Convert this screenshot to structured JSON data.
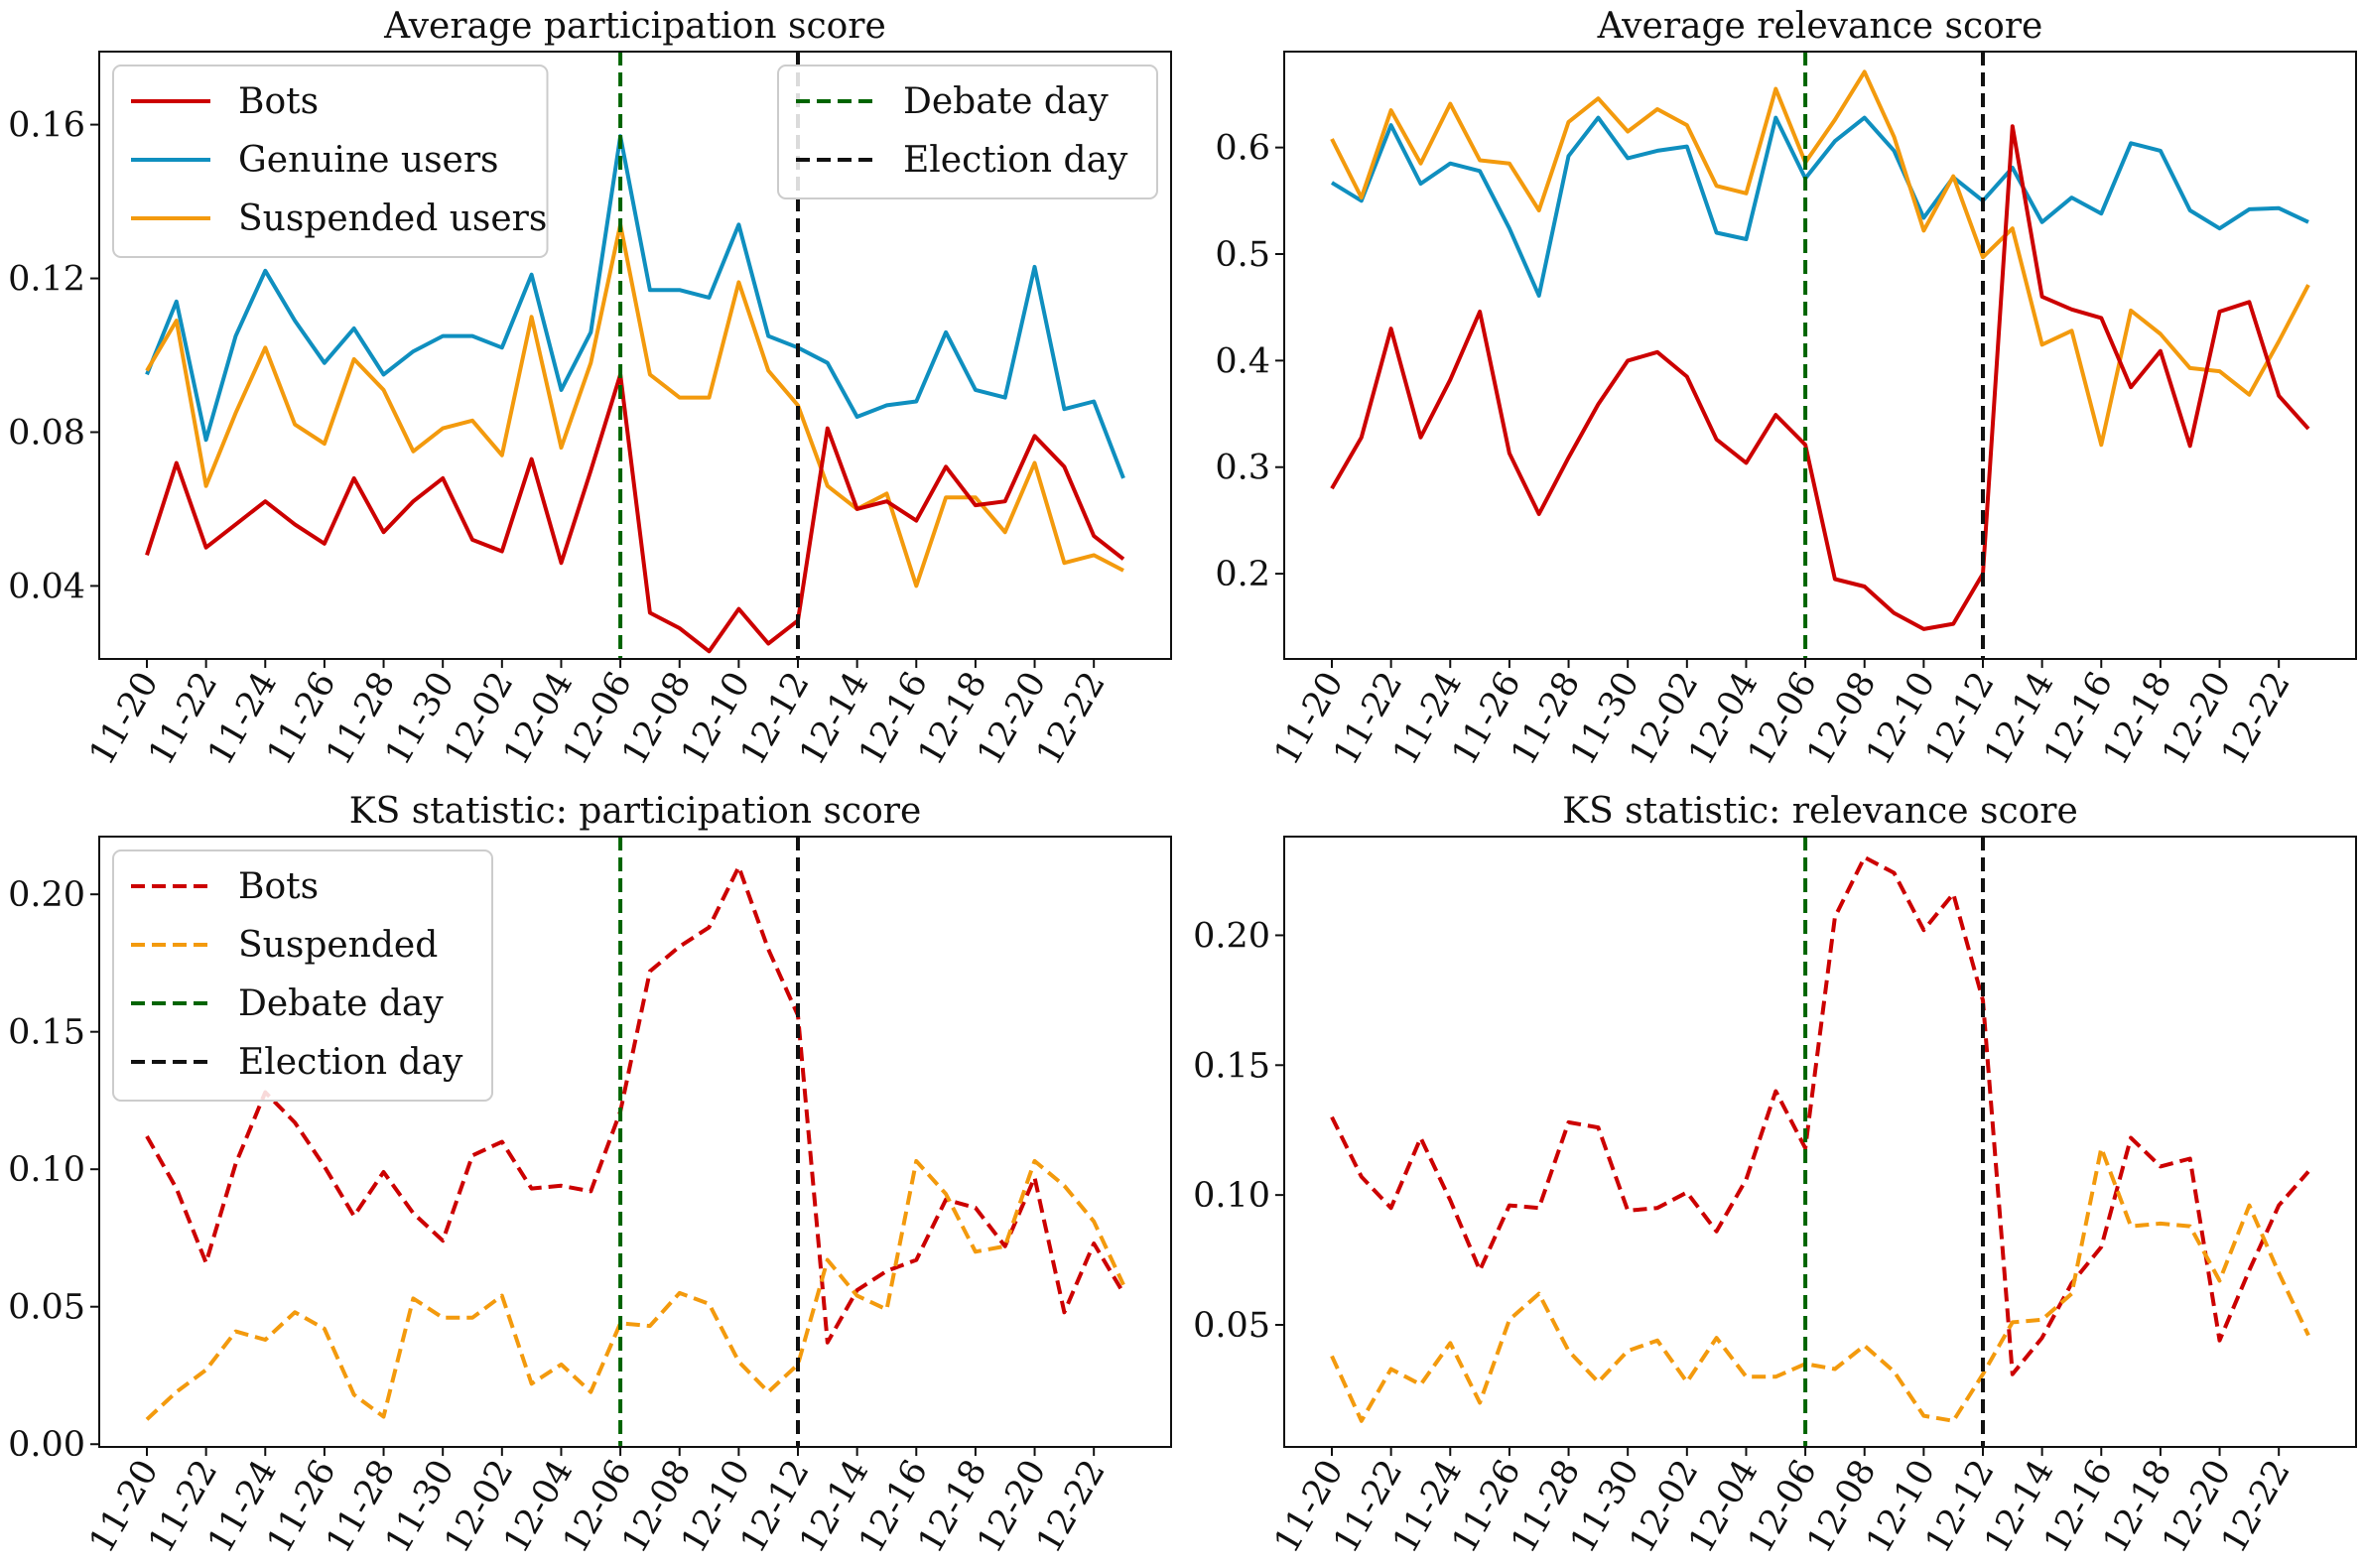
{
  "dates": [
    "11-20",
    "11-21",
    "11-22",
    "11-23",
    "11-24",
    "11-25",
    "11-26",
    "11-27",
    "11-28",
    "11-29",
    "11-30",
    "12-01",
    "12-02",
    "12-03",
    "12-04",
    "12-05",
    "12-06",
    "12-07",
    "12-08",
    "12-09",
    "12-10",
    "12-11",
    "12-12",
    "12-13",
    "12-14",
    "12-15",
    "12-16",
    "12-17",
    "12-18",
    "12-19",
    "12-20",
    "12-21",
    "12-22",
    "12-23"
  ],
  "colors": {
    "bots": "#cc0000",
    "genuine": "#0f8fbf",
    "suspended": "#f39a0d",
    "debate": "#006400",
    "election": "#111111"
  },
  "chart_data": [
    {
      "type": "line",
      "title": "Average participation score",
      "xlabel": "",
      "ylabel": "",
      "ylim": [
        0.021,
        0.179
      ],
      "yticks": [
        0.04,
        0.08,
        0.12,
        0.16
      ],
      "ytick_labels": [
        "0.04",
        "0.08",
        "0.12",
        "0.16"
      ],
      "xtick_labels": [
        "11-20",
        "11-22",
        "11-24",
        "11-26",
        "11-28",
        "11-30",
        "12-02",
        "12-04",
        "12-06",
        "12-08",
        "12-10",
        "12-12",
        "12-14",
        "12-16",
        "12-18",
        "12-20",
        "12-22"
      ],
      "vlines": [
        {
          "x": "12-06",
          "name": "Debate day",
          "color": "#006400"
        },
        {
          "x": "12-12",
          "name": "Election day",
          "color": "#111111"
        }
      ],
      "legends": [
        {
          "loc": "upper left",
          "entries": [
            {
              "name": "Bots",
              "color": "#cc0000",
              "dash": "solid"
            },
            {
              "name": "Genuine users",
              "color": "#0f8fbf",
              "dash": "solid"
            },
            {
              "name": "Suspended users",
              "color": "#f39a0d",
              "dash": "solid"
            }
          ]
        },
        {
          "loc": "upper right",
          "entries": [
            {
              "name": "Debate day",
              "color": "#006400",
              "dash": "dashed"
            },
            {
              "name": "Election day",
              "color": "#111111",
              "dash": "dashed"
            }
          ]
        }
      ],
      "series": [
        {
          "name": "Genuine users",
          "color": "#0f8fbf",
          "dash": "solid",
          "values": [
            0.095,
            0.114,
            0.078,
            0.105,
            0.122,
            0.109,
            0.098,
            0.107,
            0.095,
            0.101,
            0.105,
            0.105,
            0.102,
            0.121,
            0.091,
            0.106,
            0.157,
            0.117,
            0.117,
            0.115,
            0.134,
            0.105,
            0.102,
            0.098,
            0.084,
            0.087,
            0.088,
            0.106,
            0.091,
            0.089,
            0.123,
            0.086,
            0.088,
            0.068
          ]
        },
        {
          "name": "Suspended users",
          "color": "#f39a0d",
          "dash": "solid",
          "values": [
            0.096,
            0.109,
            0.066,
            0.085,
            0.102,
            0.082,
            0.077,
            0.099,
            0.091,
            0.075,
            0.081,
            0.083,
            0.074,
            0.11,
            0.076,
            0.098,
            0.134,
            0.095,
            0.089,
            0.089,
            0.119,
            0.096,
            0.087,
            0.066,
            0.06,
            0.064,
            0.04,
            0.063,
            0.063,
            0.054,
            0.072,
            0.046,
            0.048,
            0.044
          ]
        },
        {
          "name": "Bots",
          "color": "#cc0000",
          "dash": "solid",
          "values": [
            0.048,
            0.072,
            0.05,
            0.056,
            0.062,
            0.056,
            0.051,
            0.068,
            0.054,
            0.062,
            0.068,
            0.052,
            0.049,
            0.073,
            0.046,
            0.07,
            0.095,
            0.033,
            0.029,
            0.023,
            0.034,
            0.025,
            0.031,
            0.081,
            0.06,
            0.062,
            0.057,
            0.071,
            0.061,
            0.062,
            0.079,
            0.071,
            0.053,
            0.047
          ]
        }
      ]
    },
    {
      "type": "line",
      "title": "Average relevance score",
      "xlabel": "",
      "ylabel": "",
      "ylim": [
        0.12,
        0.69
      ],
      "yticks": [
        0.2,
        0.3,
        0.4,
        0.5,
        0.6
      ],
      "ytick_labels": [
        "0.2",
        "0.3",
        "0.4",
        "0.5",
        "0.6"
      ],
      "xtick_labels": [
        "11-20",
        "11-22",
        "11-24",
        "11-26",
        "11-28",
        "11-30",
        "12-02",
        "12-04",
        "12-06",
        "12-08",
        "12-10",
        "12-12",
        "12-14",
        "12-16",
        "12-18",
        "12-20",
        "12-22"
      ],
      "vlines": [
        {
          "x": "12-06",
          "name": "Debate day",
          "color": "#006400"
        },
        {
          "x": "12-12",
          "name": "Election day",
          "color": "#111111"
        }
      ],
      "legends": [],
      "series": [
        {
          "name": "Genuine users",
          "color": "#0f8fbf",
          "dash": "solid",
          "values": [
            0.567,
            0.55,
            0.621,
            0.566,
            0.585,
            0.578,
            0.524,
            0.461,
            0.592,
            0.628,
            0.59,
            0.597,
            0.601,
            0.52,
            0.514,
            0.628,
            0.571,
            0.606,
            0.628,
            0.597,
            0.534,
            0.572,
            0.55,
            0.581,
            0.53,
            0.553,
            0.538,
            0.604,
            0.597,
            0.541,
            0.524,
            0.542,
            0.543,
            0.53
          ]
        },
        {
          "name": "Suspended users",
          "color": "#f39a0d",
          "dash": "solid",
          "values": [
            0.608,
            0.553,
            0.635,
            0.585,
            0.641,
            0.588,
            0.585,
            0.541,
            0.624,
            0.646,
            0.615,
            0.636,
            0.621,
            0.564,
            0.557,
            0.655,
            0.586,
            0.626,
            0.671,
            0.61,
            0.522,
            0.573,
            0.497,
            0.524,
            0.415,
            0.428,
            0.321,
            0.447,
            0.425,
            0.393,
            0.39,
            0.368,
            0.418,
            0.471
          ]
        },
        {
          "name": "Bots",
          "color": "#cc0000",
          "dash": "solid",
          "values": [
            0.28,
            0.328,
            0.43,
            0.328,
            0.382,
            0.446,
            0.313,
            0.256,
            0.309,
            0.359,
            0.4,
            0.408,
            0.385,
            0.326,
            0.304,
            0.349,
            0.321,
            0.195,
            0.188,
            0.163,
            0.148,
            0.153,
            0.2,
            0.62,
            0.46,
            0.448,
            0.44,
            0.375,
            0.409,
            0.32,
            0.446,
            0.455,
            0.367,
            0.336
          ]
        }
      ]
    },
    {
      "type": "line",
      "title": "KS statistic: participation score",
      "xlabel": "",
      "ylabel": "",
      "ylim": [
        -0.001,
        0.221
      ],
      "yticks": [
        0.0,
        0.05,
        0.1,
        0.15,
        0.2
      ],
      "ytick_labels": [
        "0.00",
        "0.05",
        "0.10",
        "0.15",
        "0.20"
      ],
      "xtick_labels": [
        "11-20",
        "11-22",
        "11-24",
        "11-26",
        "11-28",
        "11-30",
        "12-02",
        "12-04",
        "12-06",
        "12-08",
        "12-10",
        "12-12",
        "12-14",
        "12-16",
        "12-18",
        "12-20",
        "12-22"
      ],
      "vlines": [
        {
          "x": "12-06",
          "name": "Debate day",
          "color": "#006400"
        },
        {
          "x": "12-12",
          "name": "Election day",
          "color": "#111111"
        }
      ],
      "legends": [
        {
          "loc": "upper left",
          "entries": [
            {
              "name": "Bots",
              "color": "#cc0000",
              "dash": "dashed"
            },
            {
              "name": "Suspended",
              "color": "#f39a0d",
              "dash": "dashed"
            },
            {
              "name": "Debate day",
              "color": "#006400",
              "dash": "dashed"
            },
            {
              "name": "Election day",
              "color": "#111111",
              "dash": "dashed"
            }
          ]
        }
      ],
      "series": [
        {
          "name": "Bots",
          "color": "#cc0000",
          "dash": "dashed",
          "values": [
            0.112,
            0.093,
            0.066,
            0.102,
            0.128,
            0.117,
            0.101,
            0.083,
            0.099,
            0.084,
            0.074,
            0.105,
            0.11,
            0.093,
            0.094,
            0.092,
            0.121,
            0.172,
            0.181,
            0.188,
            0.21,
            0.18,
            0.156,
            0.037,
            0.056,
            0.063,
            0.067,
            0.089,
            0.086,
            0.072,
            0.097,
            0.048,
            0.073,
            0.055
          ]
        },
        {
          "name": "Suspended",
          "color": "#f39a0d",
          "dash": "dashed",
          "values": [
            0.009,
            0.019,
            0.027,
            0.041,
            0.038,
            0.048,
            0.042,
            0.018,
            0.01,
            0.053,
            0.046,
            0.046,
            0.054,
            0.022,
            0.029,
            0.019,
            0.044,
            0.043,
            0.055,
            0.051,
            0.03,
            0.019,
            0.029,
            0.067,
            0.054,
            0.049,
            0.103,
            0.091,
            0.07,
            0.072,
            0.103,
            0.094,
            0.081,
            0.058
          ]
        }
      ]
    },
    {
      "type": "line",
      "title": "KS statistic: relevance score",
      "xlabel": "",
      "ylabel": "",
      "ylim": [
        0.003,
        0.238
      ],
      "yticks": [
        0.05,
        0.1,
        0.15,
        0.2
      ],
      "ytick_labels": [
        "0.05",
        "0.10",
        "0.15",
        "0.20"
      ],
      "xtick_labels": [
        "11-20",
        "11-22",
        "11-24",
        "11-26",
        "11-28",
        "11-30",
        "12-02",
        "12-04",
        "12-06",
        "12-08",
        "12-10",
        "12-12",
        "12-14",
        "12-16",
        "12-18",
        "12-20",
        "12-22"
      ],
      "vlines": [
        {
          "x": "12-06",
          "name": "Debate day",
          "color": "#006400"
        },
        {
          "x": "12-12",
          "name": "Election day",
          "color": "#111111"
        }
      ],
      "legends": [],
      "series": [
        {
          "name": "Bots",
          "color": "#cc0000",
          "dash": "dashed",
          "values": [
            0.13,
            0.107,
            0.095,
            0.122,
            0.098,
            0.071,
            0.096,
            0.095,
            0.128,
            0.126,
            0.094,
            0.095,
            0.101,
            0.086,
            0.106,
            0.14,
            0.118,
            0.207,
            0.23,
            0.224,
            0.202,
            0.216,
            0.175,
            0.031,
            0.045,
            0.066,
            0.08,
            0.122,
            0.111,
            0.114,
            0.044,
            0.071,
            0.096,
            0.109
          ]
        },
        {
          "name": "Suspended",
          "color": "#f39a0d",
          "dash": "dashed",
          "values": [
            0.038,
            0.013,
            0.033,
            0.027,
            0.043,
            0.02,
            0.052,
            0.062,
            0.04,
            0.028,
            0.04,
            0.044,
            0.028,
            0.045,
            0.03,
            0.03,
            0.035,
            0.033,
            0.042,
            0.032,
            0.015,
            0.013,
            0.031,
            0.051,
            0.052,
            0.062,
            0.118,
            0.088,
            0.089,
            0.088,
            0.067,
            0.096,
            0.07,
            0.046
          ]
        }
      ]
    }
  ]
}
